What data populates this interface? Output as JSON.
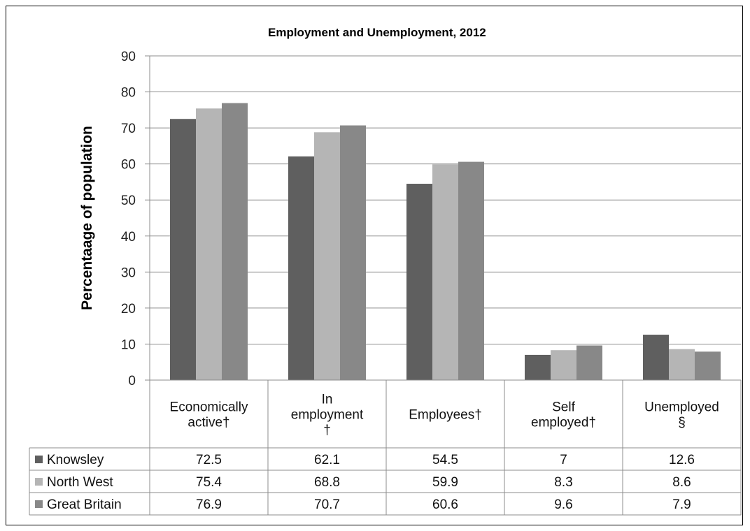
{
  "chart_data": {
    "type": "bar",
    "title": "Employment and Unemployment, 2012",
    "ylabel": "Percentaage of population",
    "xlabel": "",
    "ylim": [
      0,
      90
    ],
    "ytick_step": 10,
    "grid": true,
    "legend": "data-table",
    "categories": [
      [
        "Economically",
        "active†"
      ],
      [
        "In",
        "employment",
        "†"
      ],
      [
        "Employees†"
      ],
      [
        "Self",
        "employed†"
      ],
      [
        "Unemployed",
        "§"
      ]
    ],
    "series": [
      {
        "name": "Knowsley",
        "color": "#5f5f5f",
        "values": [
          72.5,
          62.1,
          54.5,
          7,
          12.6
        ]
      },
      {
        "name": "North West",
        "color": "#b5b5b5",
        "values": [
          75.4,
          68.8,
          59.9,
          8.3,
          8.6
        ]
      },
      {
        "name": "Great Britain",
        "color": "#888888",
        "values": [
          76.9,
          70.7,
          60.6,
          9.6,
          7.9
        ]
      }
    ],
    "table_values": [
      [
        "72.5",
        "62.1",
        "54.5",
        "7",
        "12.6"
      ],
      [
        "75.4",
        "68.8",
        "59.9",
        "8.3",
        "8.6"
      ],
      [
        "76.9",
        "70.7",
        "60.6",
        "9.6",
        "7.9"
      ]
    ]
  }
}
